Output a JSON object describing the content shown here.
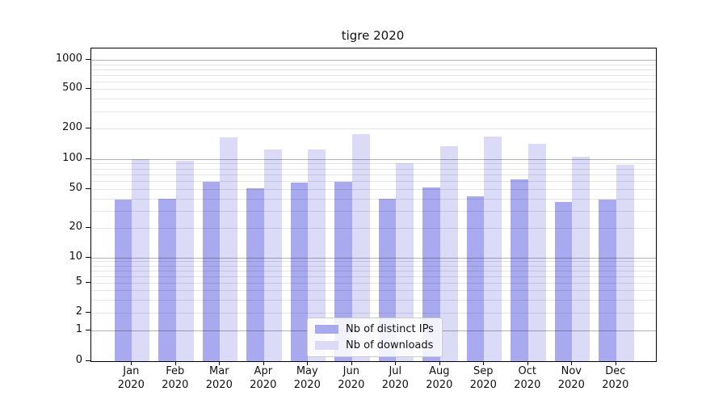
{
  "title": "tigre 2020",
  "chart_data": {
    "type": "bar",
    "title": "tigre 2020",
    "categories": [
      "Jan 2020",
      "Feb 2020",
      "Mar 2020",
      "Apr 2020",
      "May 2020",
      "Jun 2020",
      "Jul 2020",
      "Aug 2020",
      "Sep 2020",
      "Oct 2020",
      "Nov 2020",
      "Dec 2020"
    ],
    "series": [
      {
        "name": "Nb of distinct IPs",
        "color": "#a9a9f0",
        "values": [
          39,
          40,
          59,
          51,
          58,
          59,
          40,
          52,
          42,
          62,
          37,
          39
        ]
      },
      {
        "name": "Nb of downloads",
        "color": "#dbdbf8",
        "values": [
          100,
          95,
          164,
          124,
          124,
          177,
          90,
          134,
          168,
          141,
          106,
          88
        ]
      }
    ],
    "xlabel": "",
    "ylabel": "",
    "yscale": "symlog",
    "ylim": [
      0,
      1400
    ],
    "ytick_labels": [
      "1000",
      "500",
      "200",
      "100",
      "50",
      "20",
      "10",
      "5",
      "2",
      "1",
      "0"
    ],
    "ytick_values": [
      1000,
      500,
      200,
      100,
      50,
      20,
      10,
      5,
      2,
      1,
      0
    ],
    "grid": "horizontal log major+minor, drawn over bars",
    "legend_position": "lower center inside plot"
  },
  "legend": {
    "items": [
      {
        "label": "Nb of distinct IPs",
        "color": "#a9a9f0"
      },
      {
        "label": "Nb of downloads",
        "color": "#dbdbf8"
      }
    ]
  },
  "colors": {
    "background": "#ffffff",
    "axis": "#000000",
    "grid_major": "rgba(0,0,0,0.30)",
    "grid_minor": "rgba(0,0,0,0.10)",
    "text": "#111111"
  }
}
